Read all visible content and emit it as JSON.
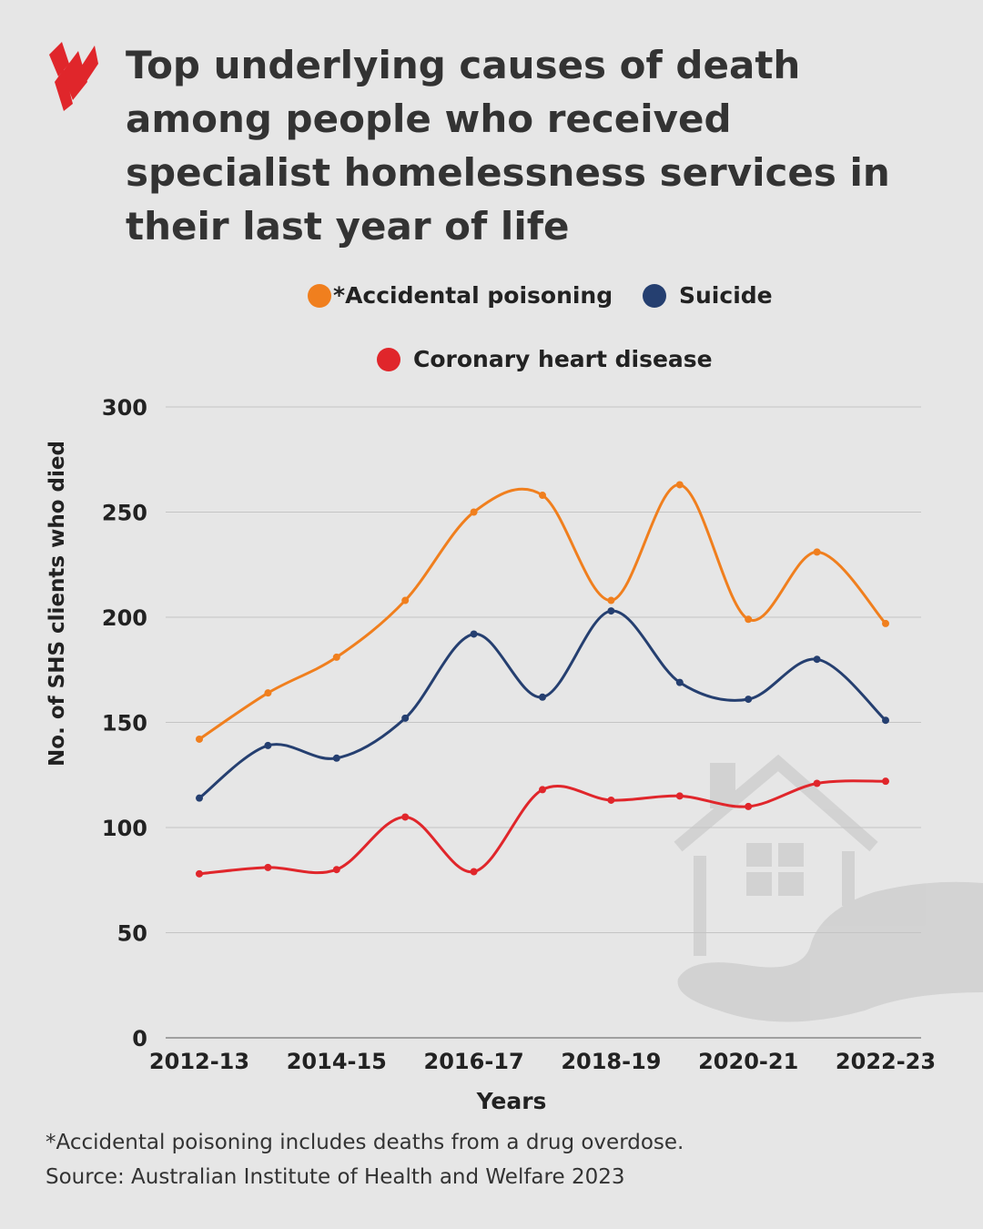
{
  "title": "Top underlying causes of death among people who received specialist homelessness services in their last year of life",
  "logo": "SBS",
  "footnote": "*Accidental poisoning includes deaths from a drug overdose.",
  "source": "Source: Australian Institute of Health and Welfare 2023",
  "chart_data": {
    "type": "line",
    "xlabel": "Years",
    "ylabel": "No. of SHS clients who died",
    "ylim": [
      0,
      300
    ],
    "yticks": [
      0,
      50,
      100,
      150,
      200,
      250,
      300
    ],
    "grid": true,
    "legend_placement": "top",
    "categories": [
      "2012-13",
      "2013-14",
      "2014-15",
      "2015-16",
      "2016-17",
      "2017-18",
      "2018-19",
      "2019-20",
      "2020-21",
      "2021-22",
      "2022-23"
    ],
    "xtick_labels": [
      "2012-13",
      "2014-15",
      "2016-17",
      "2018-19",
      "2020-21",
      "2022-23"
    ],
    "series": [
      {
        "name": "*Accidental poisoning",
        "color": "#f07f1e",
        "values": [
          142,
          164,
          181,
          208,
          250,
          258,
          208,
          263,
          199,
          231,
          197
        ]
      },
      {
        "name": "Suicide",
        "color": "#253f70",
        "values": [
          114,
          139,
          133,
          152,
          192,
          162,
          203,
          169,
          161,
          180,
          151
        ]
      },
      {
        "name": "Coronary heart disease",
        "color": "#e0262b",
        "values": [
          78,
          81,
          80,
          105,
          79,
          118,
          113,
          115,
          110,
          121,
          122
        ]
      }
    ]
  }
}
